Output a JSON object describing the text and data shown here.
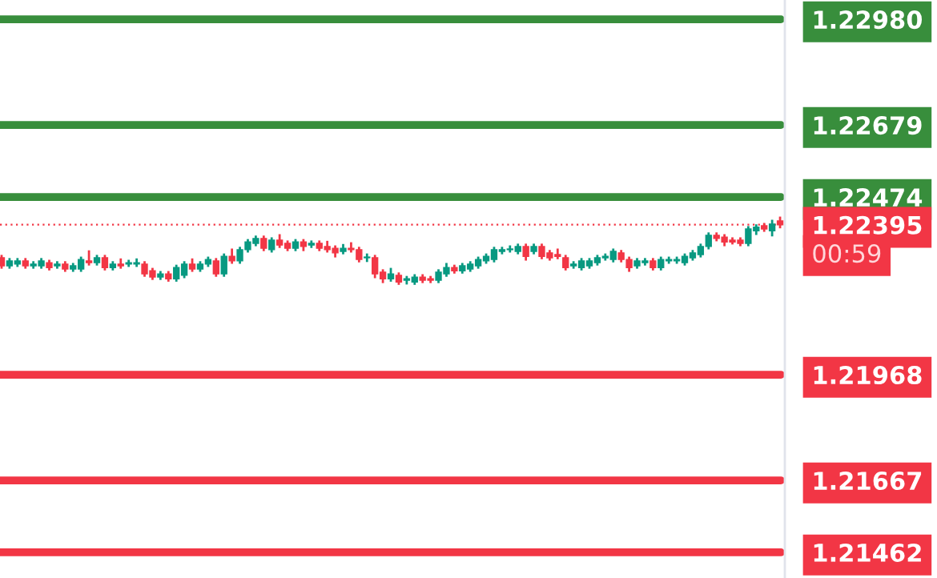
{
  "chart_data": {
    "type": "candlestick",
    "categories": [
      null,
      null,
      null,
      null,
      null,
      null,
      null,
      null,
      null,
      null,
      null,
      null,
      null,
      null,
      null,
      null,
      null,
      null,
      null,
      null,
      null,
      null,
      null,
      null,
      null,
      null,
      null,
      null,
      null,
      null,
      null,
      null,
      null,
      null,
      null,
      null,
      null,
      null,
      null,
      null,
      null,
      null,
      null,
      null,
      null,
      null,
      null,
      null,
      null,
      null,
      null,
      null,
      null,
      null,
      null,
      null,
      null,
      null,
      null,
      null,
      null,
      null,
      null,
      null,
      null,
      null,
      null,
      null,
      null,
      null,
      null,
      null,
      null,
      null,
      null,
      null,
      null,
      null,
      null,
      null,
      null,
      null,
      null,
      null,
      null,
      null,
      null,
      null,
      null,
      null,
      null,
      null,
      null,
      null,
      null,
      null,
      null,
      null,
      null
    ],
    "ohlc": [
      [
        1.22301,
        1.22306,
        1.22273,
        1.22278
      ],
      [
        1.22278,
        1.22297,
        1.22273,
        1.22292
      ],
      [
        1.22283,
        1.22297,
        1.22278,
        1.22292
      ],
      [
        1.22292,
        1.22297,
        1.22273,
        1.22278
      ],
      [
        1.22278,
        1.22288,
        1.22273,
        1.22283
      ],
      [
        1.22278,
        1.22297,
        1.22273,
        1.22292
      ],
      [
        1.22287,
        1.22292,
        1.22268,
        1.22273
      ],
      [
        1.22278,
        1.22288,
        1.22273,
        1.22283
      ],
      [
        1.22283,
        1.22288,
        1.22264,
        1.22269
      ],
      [
        1.22269,
        1.22283,
        1.22264,
        1.22278
      ],
      [
        1.22269,
        1.22301,
        1.22264,
        1.22296
      ],
      [
        1.22292,
        1.22319,
        1.22282,
        1.22287
      ],
      [
        1.22287,
        1.22306,
        1.22282,
        1.22301
      ],
      [
        1.22301,
        1.22306,
        1.22268,
        1.22273
      ],
      [
        1.22273,
        1.22288,
        1.22268,
        1.22283
      ],
      [
        1.22283,
        1.22296,
        1.22273,
        1.22278
      ],
      [
        1.22283,
        1.22292,
        1.22278,
        1.22287
      ],
      [
        1.22283,
        1.22296,
        1.22278,
        1.22287
      ],
      [
        1.22283,
        1.22288,
        1.2225,
        1.22255
      ],
      [
        1.22264,
        1.22269,
        1.22241,
        1.22246
      ],
      [
        1.22246,
        1.2226,
        1.22241,
        1.22255
      ],
      [
        1.22255,
        1.2226,
        1.22236,
        1.22241
      ],
      [
        1.22241,
        1.22278,
        1.22236,
        1.22273
      ],
      [
        1.22251,
        1.22288,
        1.22246,
        1.22283
      ],
      [
        1.22283,
        1.22296,
        1.22264,
        1.22269
      ],
      [
        1.22269,
        1.22288,
        1.22264,
        1.22283
      ],
      [
        1.22283,
        1.22301,
        1.22278,
        1.22296
      ],
      [
        1.22292,
        1.22297,
        1.2225,
        1.22255
      ],
      [
        1.22255,
        1.2231,
        1.2225,
        1.22305
      ],
      [
        1.22305,
        1.22324,
        1.22287,
        1.22292
      ],
      [
        1.22292,
        1.22329,
        1.22287,
        1.22324
      ],
      [
        1.22324,
        1.22351,
        1.22319,
        1.22346
      ],
      [
        1.22342,
        1.22361,
        1.22337,
        1.22356
      ],
      [
        1.22356,
        1.22361,
        1.22323,
        1.22328
      ],
      [
        1.22324,
        1.22356,
        1.22319,
        1.22351
      ],
      [
        1.22351,
        1.22365,
        1.22332,
        1.22337
      ],
      [
        1.22342,
        1.22347,
        1.22323,
        1.22328
      ],
      [
        1.22328,
        1.22351,
        1.22323,
        1.22346
      ],
      [
        1.22346,
        1.22351,
        1.22323,
        1.22333
      ],
      [
        1.22337,
        1.22347,
        1.22332,
        1.22342
      ],
      [
        1.22342,
        1.22347,
        1.22323,
        1.22328
      ],
      [
        1.22333,
        1.22346,
        1.22319,
        1.22324
      ],
      [
        1.22328,
        1.22333,
        1.22305,
        1.22315
      ],
      [
        1.22319,
        1.22337,
        1.22314,
        1.22328
      ],
      [
        1.22328,
        1.22342,
        1.22319,
        1.22324
      ],
      [
        1.22324,
        1.22329,
        1.22291,
        1.22296
      ],
      [
        1.22301,
        1.2231,
        1.22292,
        1.22303
      ],
      [
        1.22301,
        1.22306,
        1.22246,
        1.22255
      ],
      [
        1.2226,
        1.22265,
        1.22232,
        1.22241
      ],
      [
        1.22241,
        1.22269,
        1.22236,
        1.22255
      ],
      [
        1.22251,
        1.22256,
        1.22227,
        1.22232
      ],
      [
        1.22237,
        1.22246,
        1.22228,
        1.22241
      ],
      [
        1.22232,
        1.22251,
        1.22227,
        1.22246
      ],
      [
        1.22246,
        1.22251,
        1.22232,
        1.22237
      ],
      [
        1.22241,
        1.22246,
        1.22232,
        1.22237
      ],
      [
        1.22237,
        1.22265,
        1.22232,
        1.2226
      ],
      [
        1.22255,
        1.22283,
        1.2225,
        1.22273
      ],
      [
        1.22273,
        1.22278,
        1.22259,
        1.22264
      ],
      [
        1.22264,
        1.22283,
        1.22259,
        1.22278
      ],
      [
        1.22269,
        1.22288,
        1.22264,
        1.22283
      ],
      [
        1.22278,
        1.22301,
        1.22273,
        1.22296
      ],
      [
        1.22292,
        1.2231,
        1.22287,
        1.22305
      ],
      [
        1.22296,
        1.22329,
        1.22291,
        1.22324
      ],
      [
        1.22319,
        1.22329,
        1.22314,
        1.22324
      ],
      [
        1.22324,
        1.22333,
        1.22319,
        1.22326
      ],
      [
        1.22319,
        1.22338,
        1.22314,
        1.22333
      ],
      [
        1.22333,
        1.22338,
        1.22296,
        1.22305
      ],
      [
        1.22319,
        1.22338,
        1.22314,
        1.22333
      ],
      [
        1.22333,
        1.22338,
        1.223,
        1.22305
      ],
      [
        1.22315,
        1.2232,
        1.22296,
        1.22301
      ],
      [
        1.2231,
        1.22324,
        1.223,
        1.22305
      ],
      [
        1.22301,
        1.22306,
        1.22268,
        1.22273
      ],
      [
        1.22278,
        1.22288,
        1.22273,
        1.22283
      ],
      [
        1.22273,
        1.22297,
        1.22268,
        1.22292
      ],
      [
        1.22278,
        1.22297,
        1.22273,
        1.22292
      ],
      [
        1.22287,
        1.22306,
        1.22282,
        1.22301
      ],
      [
        1.22301,
        1.2231,
        1.22296,
        1.22305
      ],
      [
        1.22296,
        1.22324,
        1.22291,
        1.22319
      ],
      [
        1.22315,
        1.2232,
        1.22291,
        1.22296
      ],
      [
        1.22296,
        1.22301,
        1.22264,
        1.22273
      ],
      [
        1.22278,
        1.22297,
        1.22273,
        1.22292
      ],
      [
        1.22287,
        1.22297,
        1.22282,
        1.22292
      ],
      [
        1.22292,
        1.22297,
        1.22268,
        1.22273
      ],
      [
        1.22273,
        1.22301,
        1.22268,
        1.22296
      ],
      [
        1.22292,
        1.22301,
        1.22287,
        1.22296
      ],
      [
        1.22292,
        1.22301,
        1.22287,
        1.22296
      ],
      [
        1.22287,
        1.2231,
        1.22282,
        1.22305
      ],
      [
        1.22301,
        1.2232,
        1.22296,
        1.22315
      ],
      [
        1.2231,
        1.22338,
        1.22305,
        1.22333
      ],
      [
        1.22333,
        1.2237,
        1.22328,
        1.22365
      ],
      [
        1.22365,
        1.2237,
        1.22351,
        1.22356
      ],
      [
        1.2236,
        1.22365,
        1.22337,
        1.22346
      ],
      [
        1.22351,
        1.22356,
        1.22342,
        1.22346
      ],
      [
        1.22351,
        1.22356,
        1.22337,
        1.22342
      ],
      [
        1.22342,
        1.22388,
        1.22337,
        1.22383
      ],
      [
        1.22378,
        1.22393,
        1.22369,
        1.22388
      ],
      [
        1.22392,
        1.22397,
        1.22378,
        1.22383
      ],
      [
        1.22378,
        1.22406,
        1.22365,
        1.22397
      ],
      [
        1.22406,
        1.22415,
        1.22388,
        1.22395
      ]
    ],
    "ylim": [
      1.21389,
      1.23035
    ],
    "yticks": [
      {
        "value": 1.2298,
        "label": "1.22980"
      },
      {
        "value": 1.22679,
        "label": "1.22679"
      },
      {
        "value": 1.22474,
        "label": "1.22474"
      },
      {
        "value": 1.22395,
        "label": "1.22395"
      },
      {
        "value": 1.21968,
        "label": "1.21968"
      },
      {
        "value": 1.21667,
        "label": "1.21667"
      },
      {
        "value": 1.21462,
        "label": "1.21462"
      }
    ],
    "ref_lines": [
      {
        "axis": "y",
        "value": 1.2298,
        "color": "#388e3c"
      },
      {
        "axis": "y",
        "value": 1.22679,
        "color": "#388e3c"
      },
      {
        "axis": "y",
        "value": 1.22474,
        "color": "#388e3c"
      },
      {
        "axis": "y",
        "value": 1.22395,
        "color": "#f23645",
        "line_style": "dotted"
      },
      {
        "axis": "y",
        "value": 1.21968,
        "color": "#f23645"
      },
      {
        "axis": "y",
        "value": 1.21667,
        "color": "#f23645"
      },
      {
        "axis": "y",
        "value": 1.21462,
        "color": "#f23645"
      }
    ],
    "annotations": [
      "00:59"
    ]
  }
}
